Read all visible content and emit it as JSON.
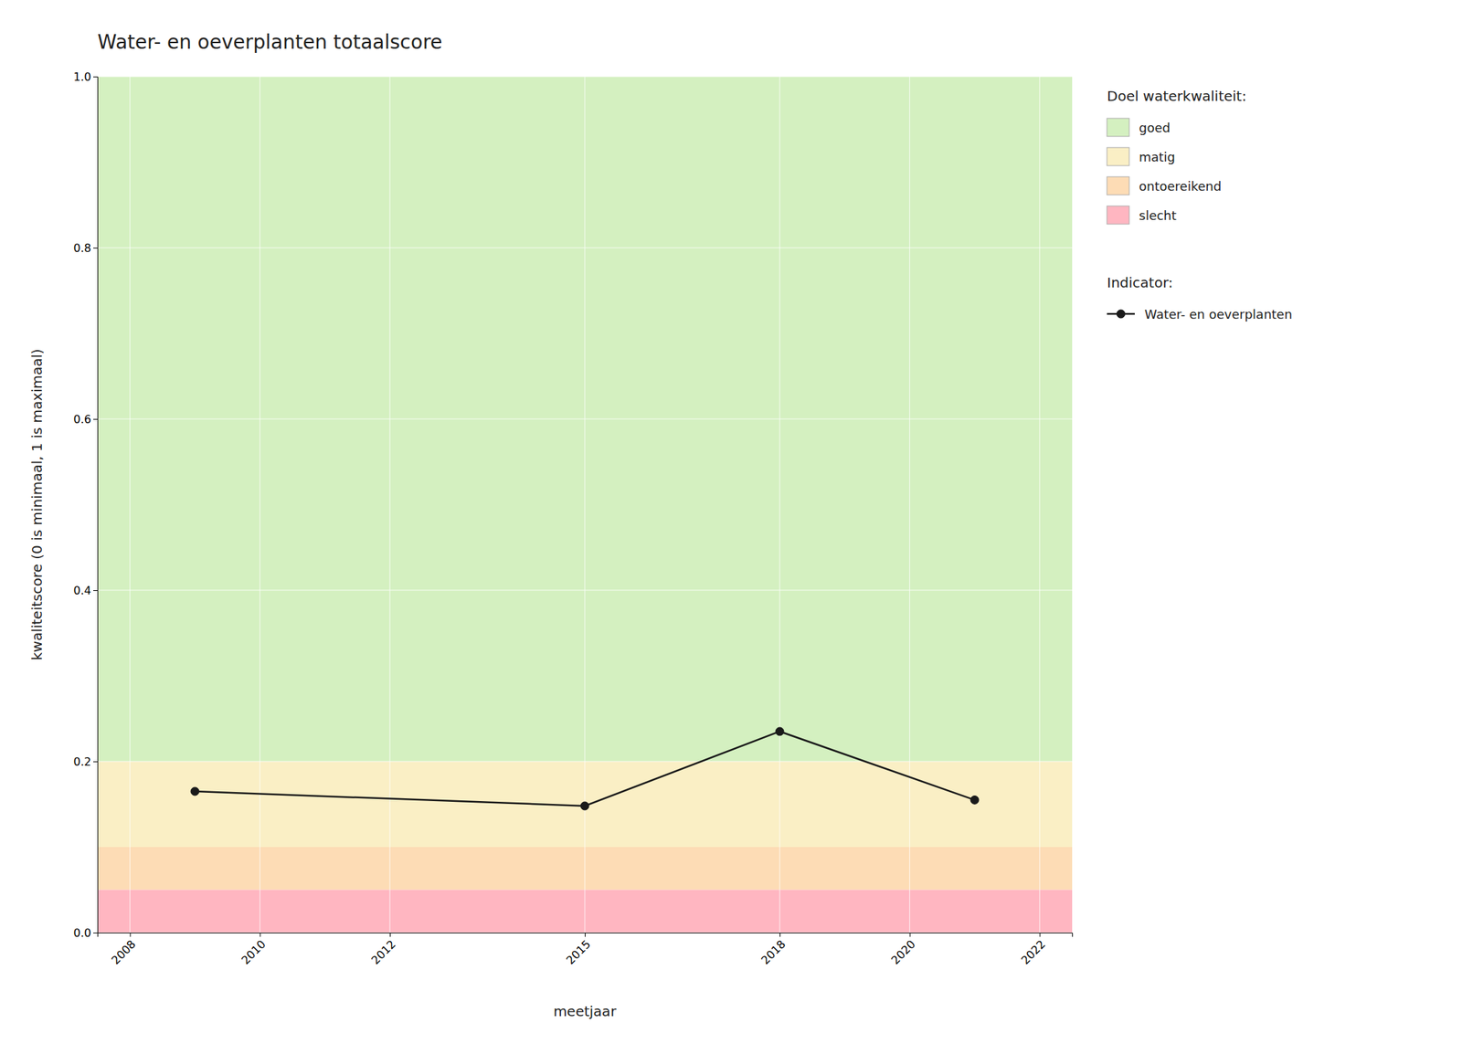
{
  "chart_data": {
    "type": "line",
    "title": "Water- en oeverplanten totaalscore",
    "xlabel": "meetjaar",
    "ylabel": "kwaliteitscore (0 is minimaal, 1 is maximaal)",
    "x": [
      2009,
      2015,
      2018,
      2021
    ],
    "series": [
      {
        "name": "Water- en oeverplanten",
        "color": "#1a1a1a",
        "marker": "circle",
        "values": [
          0.165,
          0.148,
          0.235,
          0.155
        ]
      }
    ],
    "xlim": [
      2007.5,
      2022.5
    ],
    "xticks": [
      2008,
      2010,
      2012,
      2015,
      2018,
      2020,
      2022
    ],
    "ylim": [
      0.0,
      1.0
    ],
    "yticks": [
      {
        "value": 0.0,
        "label": "0.0"
      },
      0.2,
      0.4,
      0.6,
      0.8,
      {
        "value": 1.0,
        "label": "1.0"
      }
    ],
    "grid": true,
    "legend": "right",
    "zones_title": "Doel waterkwaliteit:",
    "zones": [
      {
        "name": "goed",
        "color": "#D4F0C0",
        "ymin": 0.2,
        "ymax": 1.0
      },
      {
        "name": "matig",
        "color": "#FAEFC5",
        "ymin": 0.1,
        "ymax": 0.2
      },
      {
        "name": "ontoereikend",
        "color": "#FDDCB5",
        "ymin": 0.05,
        "ymax": 0.1
      },
      {
        "name": "slecht",
        "color": "#FFB6C1",
        "ymin": 0.0,
        "ymax": 0.05
      }
    ],
    "series_legend_title": "Indicator:"
  }
}
